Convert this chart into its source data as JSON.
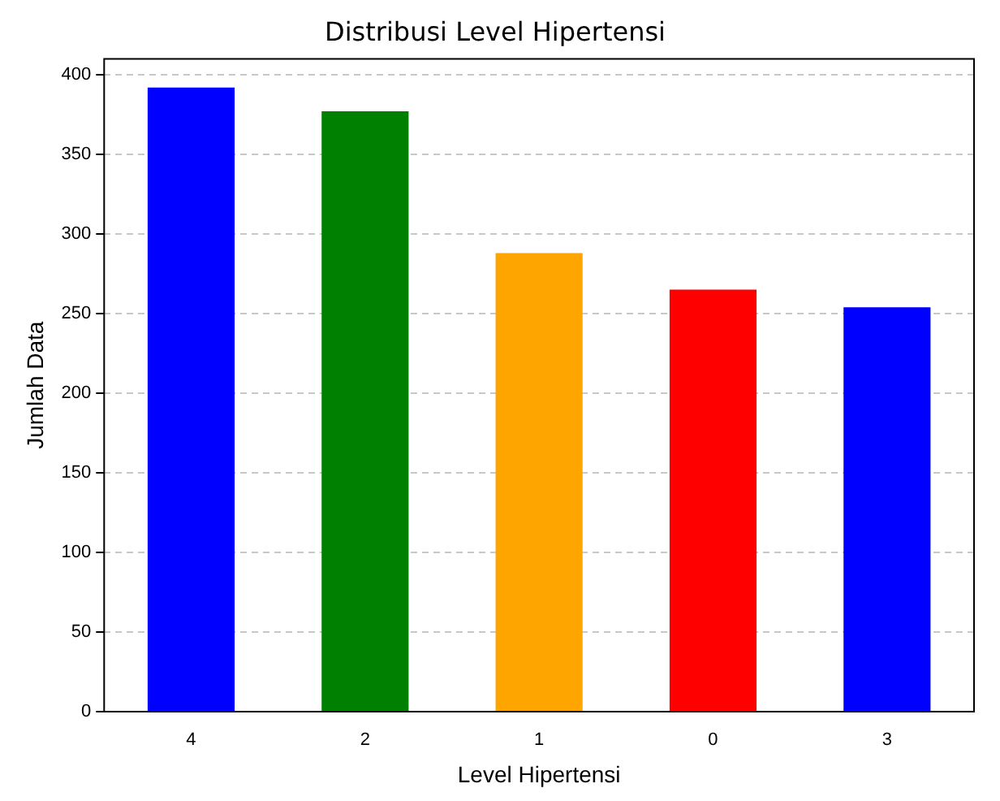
{
  "chart_data": {
    "type": "bar",
    "title": "Distribusi Level Hipertensi",
    "xlabel": "Level Hipertensi",
    "ylabel": "Jumlah Data",
    "categories": [
      "4",
      "2",
      "1",
      "0",
      "3"
    ],
    "values": [
      392,
      377,
      288,
      265,
      254
    ],
    "colors": [
      "#0000ff",
      "#008000",
      "#ffa500",
      "#ff0000",
      "#0000ff"
    ],
    "ylim": [
      0,
      410
    ],
    "yticks": [
      0,
      50,
      100,
      150,
      200,
      250,
      300,
      350,
      400
    ],
    "grid": "y"
  }
}
